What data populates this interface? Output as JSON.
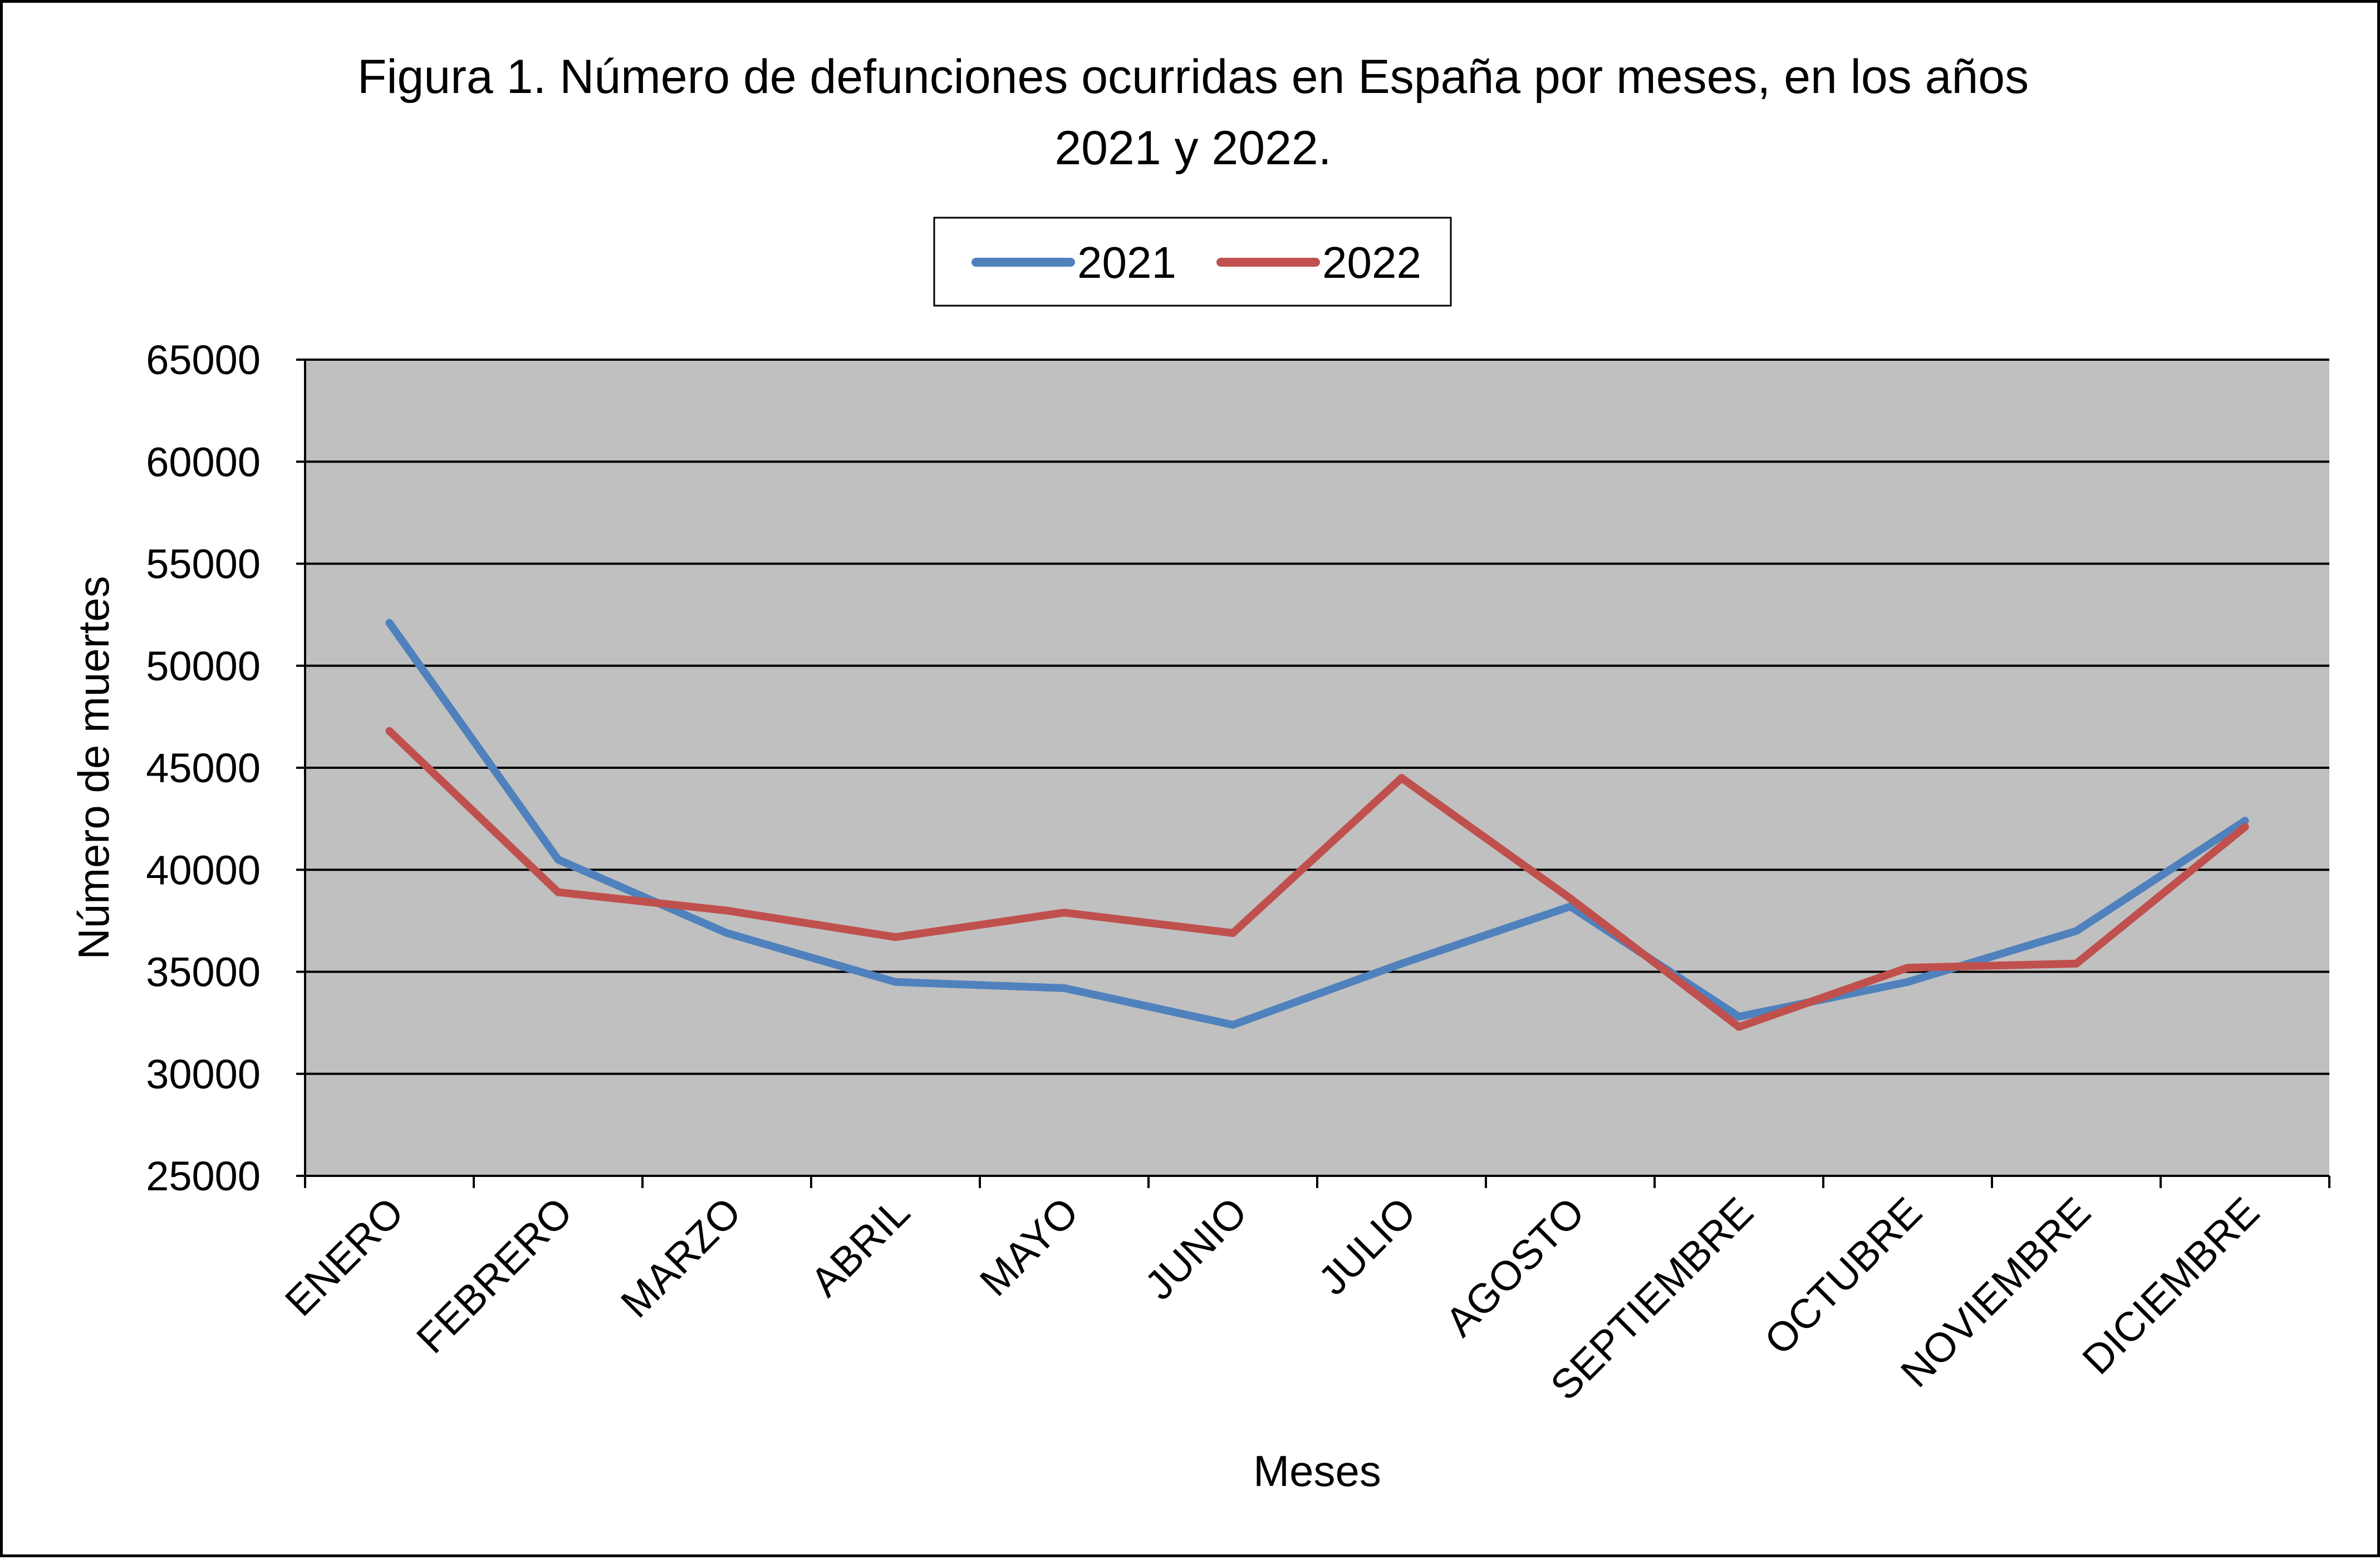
{
  "chart_data": {
    "type": "line",
    "title_lines": [
      "Figura 1. Número de defunciones ocurridas en España por meses, en los años",
      "2021 y 2022."
    ],
    "xlabel": "Meses",
    "ylabel": "Número de muertes",
    "categories": [
      "ENERO",
      "FEBRERO",
      "MARZO",
      "ABRIL",
      "MAYO",
      "JUNIO",
      "JULIO",
      "AGOSTO",
      "SEPTIEMBRE",
      "OCTUBRE",
      "NOVIEMBRE",
      "DICIEMBRE"
    ],
    "ylim": [
      25000,
      65000
    ],
    "yticks": [
      25000,
      30000,
      35000,
      40000,
      45000,
      50000,
      55000,
      60000,
      65000
    ],
    "grid": true,
    "plot_background": "#c0c0c0",
    "legend_position": "top-center",
    "series": [
      {
        "name": "2021",
        "color": "#4f81bd",
        "values": [
          52100,
          40500,
          36900,
          34500,
          34200,
          32400,
          35400,
          38200,
          32800,
          34500,
          37000,
          42400
        ]
      },
      {
        "name": "2022",
        "color": "#c0504d",
        "values": [
          46800,
          38900,
          38000,
          36700,
          37900,
          36900,
          44500,
          38600,
          32300,
          35200,
          35400,
          42100
        ]
      }
    ]
  }
}
